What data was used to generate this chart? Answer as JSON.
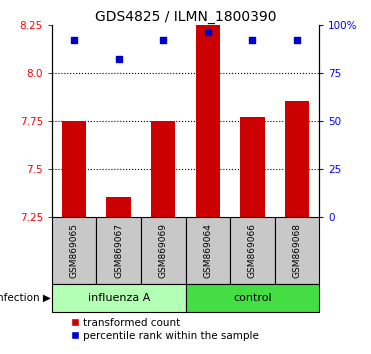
{
  "title": "GDS4825 / ILMN_1800390",
  "categories": [
    "GSM869065",
    "GSM869067",
    "GSM869069",
    "GSM869064",
    "GSM869066",
    "GSM869068"
  ],
  "bar_values": [
    7.75,
    7.35,
    7.75,
    8.25,
    7.77,
    7.85
  ],
  "dot_values": [
    92,
    82,
    92,
    96,
    92,
    92
  ],
  "bar_color": "#cc0000",
  "dot_color": "#0000cc",
  "ylim_left": [
    7.25,
    8.25
  ],
  "ylim_right": [
    0,
    100
  ],
  "yticks_left": [
    7.25,
    7.5,
    7.75,
    8.0,
    8.25
  ],
  "yticks_right": [
    0,
    25,
    50,
    75,
    100
  ],
  "ytick_labels_right": [
    "0",
    "25",
    "50",
    "75",
    "100%"
  ],
  "gridlines": [
    7.5,
    7.75,
    8.0
  ],
  "legend_items": [
    "transformed count",
    "percentile rank within the sample"
  ],
  "group_annotation": "infection",
  "flu_color": "#b3ffb3",
  "ctrl_color": "#44dd44",
  "group_border": "#000000",
  "tick_bg": "#c8c8c8",
  "tick_border": "#000000",
  "bar_width": 0.55
}
